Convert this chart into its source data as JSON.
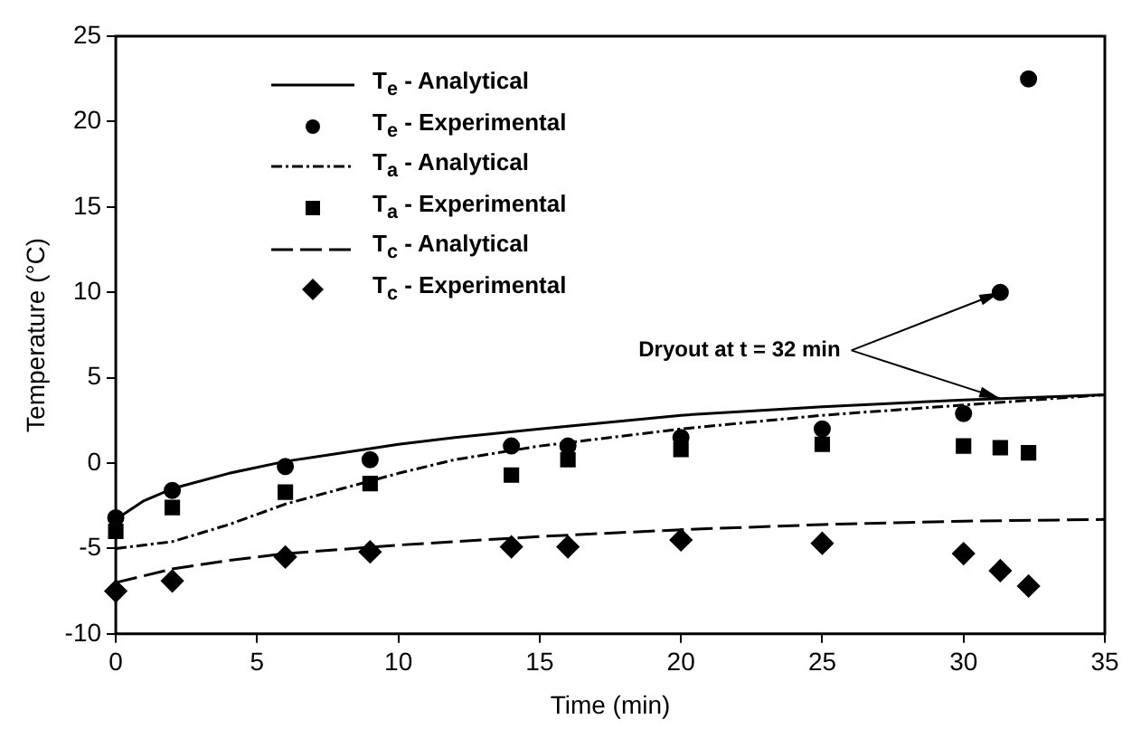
{
  "chart_data": {
    "type": "line",
    "xlabel": "Time (min)",
    "ylabel": "Temperature (°C)",
    "xlim": [
      0,
      35
    ],
    "ylim": [
      -10,
      25
    ],
    "xticks": [
      0,
      5,
      10,
      15,
      20,
      25,
      30,
      35
    ],
    "yticks": [
      -10,
      -5,
      0,
      5,
      10,
      15,
      20,
      25
    ],
    "grid": false,
    "legend": "top left",
    "annotations": [
      {
        "text": "Dryout at t = 32 min",
        "x": 31.3,
        "y": 10.0
      }
    ],
    "series": [
      {
        "name": "T$_{e}$ - Analytical",
        "type": "line",
        "color": "#000000",
        "line_style": "solid",
        "marker": "none",
        "x": [
          0,
          1,
          2,
          4,
          6,
          8,
          10,
          12,
          15,
          20,
          25,
          30,
          35
        ],
        "values": [
          -3.3,
          -2.2,
          -1.5,
          -0.6,
          0.1,
          0.6,
          1.1,
          1.5,
          2.0,
          2.8,
          3.3,
          3.7,
          4.0
        ]
      },
      {
        "name": "T$_{e}$ - Experimental",
        "type": "scatter",
        "color": "#000000",
        "marker": "circle",
        "x": [
          0,
          2,
          6,
          9,
          14,
          16,
          20,
          25,
          30,
          31.3,
          32.3
        ],
        "values": [
          -3.2,
          -1.6,
          -0.2,
          0.2,
          1.0,
          1.0,
          1.5,
          2.0,
          2.9,
          10.0,
          22.5
        ]
      },
      {
        "name": "T$_{a}$ - Analytical",
        "type": "line",
        "color": "#000000",
        "line_style": "dotted",
        "marker": "none",
        "x": [
          0,
          2,
          4,
          6,
          8,
          10,
          12,
          15,
          20,
          25,
          30,
          35
        ],
        "values": [
          -5.0,
          -4.6,
          -3.6,
          -2.4,
          -1.5,
          -0.6,
          0.2,
          1.0,
          2.0,
          2.8,
          3.4,
          4.0
        ]
      },
      {
        "name": "T$_{a}$ - Experimental",
        "type": "scatter",
        "color": "#000000",
        "marker": "square",
        "x": [
          0,
          2,
          6,
          9,
          14,
          16,
          20,
          25,
          30,
          31.3,
          32.3
        ],
        "values": [
          -4.0,
          -2.6,
          -1.7,
          -1.2,
          -0.7,
          0.2,
          0.8,
          1.1,
          1.0,
          0.9,
          0.6
        ]
      },
      {
        "name": "T$_{c}$ - Analytical",
        "type": "line",
        "color": "#000000",
        "line_style": "dashed",
        "marker": "none",
        "x": [
          0,
          2,
          4,
          6,
          10,
          15,
          20,
          25,
          30,
          35
        ],
        "values": [
          -7.0,
          -6.2,
          -5.7,
          -5.3,
          -4.8,
          -4.3,
          -3.9,
          -3.6,
          -3.4,
          -3.3
        ]
      },
      {
        "name": "T$_{c}$ - Experimental",
        "type": "scatter",
        "color": "#000000",
        "marker": "diamond",
        "x": [
          0,
          2,
          6,
          9,
          14,
          16,
          20,
          25,
          30,
          31.3,
          32.3
        ],
        "values": [
          -7.5,
          -6.9,
          -5.5,
          -5.2,
          -4.9,
          -4.9,
          -4.5,
          -4.7,
          -5.3,
          -6.3,
          -7.2
        ]
      }
    ]
  }
}
